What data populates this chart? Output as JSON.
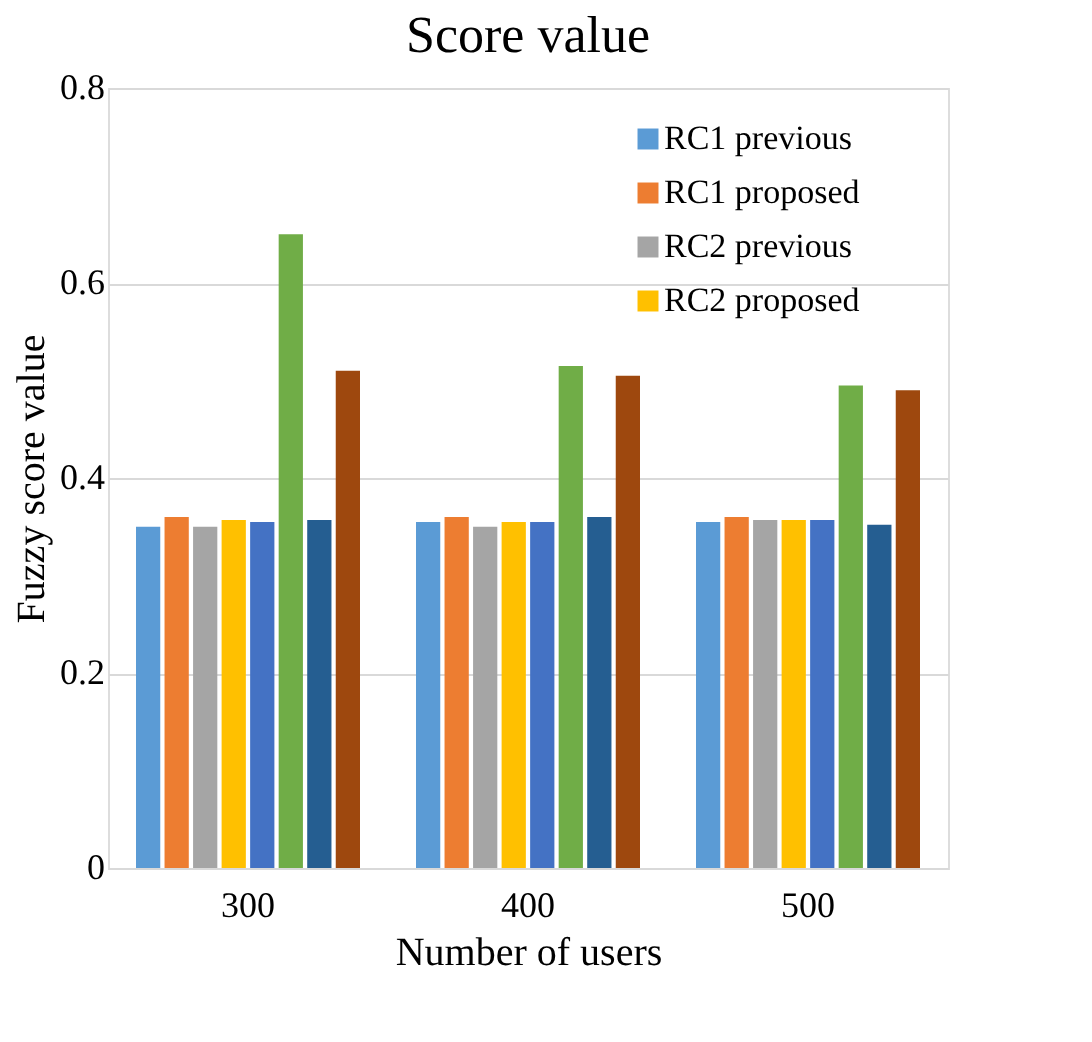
{
  "chart_data": {
    "type": "bar",
    "title": "Score value",
    "xlabel": "Number of users",
    "ylabel": "Fuzzy score value",
    "categories": [
      "300",
      "400",
      "500"
    ],
    "series": [
      {
        "name": "RC1 previous",
        "color": "#5b9bd5",
        "values": [
          0.35,
          0.355,
          0.355
        ]
      },
      {
        "name": "RC1 proposed",
        "color": "#ed7d31",
        "values": [
          0.36,
          0.36,
          0.36
        ]
      },
      {
        "name": "RC2 previous",
        "color": "#a5a5a5",
        "values": [
          0.35,
          0.35,
          0.357
        ]
      },
      {
        "name": "RC2 proposed",
        "color": "#ffc000",
        "values": [
          0.357,
          0.355,
          0.357
        ]
      },
      {
        "color": "#4472c4",
        "values": [
          0.355,
          0.355,
          0.357
        ]
      },
      {
        "color": "#70ad47",
        "values": [
          0.65,
          0.515,
          0.495
        ]
      },
      {
        "color": "#255e91",
        "values": [
          0.357,
          0.36,
          0.352
        ]
      },
      {
        "color": "#9e480e",
        "values": [
          0.51,
          0.505,
          0.49
        ]
      }
    ],
    "ylim": [
      0,
      0.8
    ],
    "yticks": [
      0,
      0.2,
      0.4,
      0.6,
      0.8
    ],
    "grid": "y",
    "legend": "top right"
  }
}
